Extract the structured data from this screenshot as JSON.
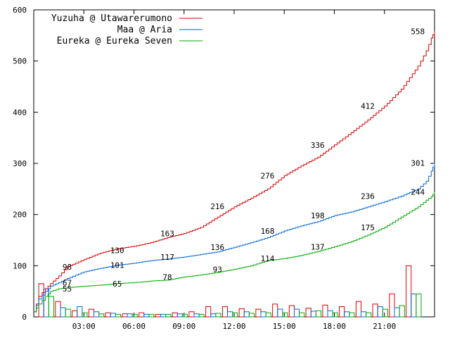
{
  "chart_data": {
    "type": "line",
    "x_axis": {
      "min_hour": 0.0,
      "max_hour": 24.0,
      "tick_hours": [
        3,
        6,
        9,
        12,
        15,
        18,
        21
      ],
      "tick_labels": [
        "03:00",
        "06:00",
        "09:00",
        "12:00",
        "15:00",
        "18:00",
        "21:00"
      ]
    },
    "y_axis": {
      "min": 0,
      "max": 600,
      "ticks": [
        0,
        100,
        200,
        300,
        400,
        500,
        600
      ],
      "tick_labels": [
        "0",
        "100",
        "200",
        "300",
        "400",
        "500",
        "600"
      ]
    },
    "series": [
      {
        "name": "Yuzuha @ Utawarerumono",
        "color": "#dd0000",
        "cumulative": [
          [
            0,
            10
          ],
          [
            0.3,
            40
          ],
          [
            0.7,
            55
          ],
          [
            1,
            65
          ],
          [
            1.5,
            80
          ],
          [
            2,
            98
          ],
          [
            3,
            112
          ],
          [
            4,
            125
          ],
          [
            5,
            133
          ],
          [
            6,
            138
          ],
          [
            7,
            145
          ],
          [
            8,
            155
          ],
          [
            9,
            163
          ],
          [
            10,
            175
          ],
          [
            11,
            195
          ],
          [
            12,
            215
          ],
          [
            13,
            232
          ],
          [
            14,
            250
          ],
          [
            15,
            276
          ],
          [
            16,
            295
          ],
          [
            17,
            312
          ],
          [
            18,
            336
          ],
          [
            19,
            360
          ],
          [
            20,
            385
          ],
          [
            21,
            412
          ],
          [
            22,
            445
          ],
          [
            23,
            490
          ],
          [
            23.5,
            520
          ],
          [
            23.8,
            545
          ],
          [
            24,
            558
          ]
        ],
        "labels": [
          [
            2,
            98,
            "98"
          ],
          [
            5,
            130,
            "130"
          ],
          [
            8,
            163,
            "163"
          ],
          [
            11,
            216,
            "216"
          ],
          [
            14,
            276,
            "276"
          ],
          [
            17,
            336,
            "336"
          ],
          [
            20,
            412,
            "412"
          ],
          [
            23,
            558,
            "558"
          ]
        ],
        "bars": [
          [
            0.3,
            65
          ],
          [
            1.3,
            30
          ],
          [
            2.3,
            12
          ],
          [
            3.3,
            15
          ],
          [
            4.3,
            8
          ],
          [
            5.3,
            6
          ],
          [
            6.3,
            8
          ],
          [
            7.3,
            5
          ],
          [
            8.3,
            8
          ],
          [
            9.3,
            10
          ],
          [
            10.3,
            20
          ],
          [
            11.3,
            20
          ],
          [
            12.3,
            16
          ],
          [
            13.3,
            15
          ],
          [
            14.3,
            25
          ],
          [
            15.3,
            22
          ],
          [
            16.3,
            17
          ],
          [
            17.3,
            23
          ],
          [
            18.3,
            20
          ],
          [
            19.3,
            30
          ],
          [
            20.3,
            25
          ],
          [
            21.3,
            45
          ],
          [
            22.3,
            100
          ]
        ]
      },
      {
        "name": "Maa @ Aria",
        "color": "#0066dd",
        "cumulative": [
          [
            0,
            10
          ],
          [
            0.3,
            35
          ],
          [
            0.7,
            50
          ],
          [
            1,
            60
          ],
          [
            1.5,
            67
          ],
          [
            2,
            75
          ],
          [
            3,
            88
          ],
          [
            4,
            95
          ],
          [
            5,
            101
          ],
          [
            6,
            105
          ],
          [
            7,
            110
          ],
          [
            8,
            113
          ],
          [
            9,
            117
          ],
          [
            10,
            122
          ],
          [
            11,
            127
          ],
          [
            12,
            136
          ],
          [
            13,
            145
          ],
          [
            14,
            155
          ],
          [
            15,
            168
          ],
          [
            16,
            178
          ],
          [
            17,
            186
          ],
          [
            18,
            198
          ],
          [
            19,
            205
          ],
          [
            20,
            215
          ],
          [
            21,
            225
          ],
          [
            22,
            236
          ],
          [
            23,
            250
          ],
          [
            23.5,
            265
          ],
          [
            23.8,
            285
          ],
          [
            24,
            301
          ]
        ],
        "labels": [
          [
            2,
            67,
            "67"
          ],
          [
            5,
            101,
            "101"
          ],
          [
            8,
            117,
            "117"
          ],
          [
            11,
            136,
            "136"
          ],
          [
            14,
            168,
            "168"
          ],
          [
            17,
            198,
            "198"
          ],
          [
            20,
            236,
            "236"
          ],
          [
            23,
            301,
            "301"
          ]
        ],
        "bars": [
          [
            0.6,
            55
          ],
          [
            1.6,
            18
          ],
          [
            2.6,
            20
          ],
          [
            3.6,
            10
          ],
          [
            4.6,
            7
          ],
          [
            5.6,
            6
          ],
          [
            6.6,
            5
          ],
          [
            7.6,
            5
          ],
          [
            8.6,
            6
          ],
          [
            9.6,
            6
          ],
          [
            10.6,
            6
          ],
          [
            11.6,
            10
          ],
          [
            12.6,
            10
          ],
          [
            13.6,
            10
          ],
          [
            14.6,
            15
          ],
          [
            15.6,
            15
          ],
          [
            16.6,
            11
          ],
          [
            17.6,
            12
          ],
          [
            18.6,
            10
          ],
          [
            19.6,
            10
          ],
          [
            20.6,
            20
          ],
          [
            21.6,
            18
          ],
          [
            22.6,
            45
          ]
        ]
      },
      {
        "name": "Eureka @ Eureka Seven",
        "color": "#00aa00",
        "cumulative": [
          [
            0,
            10
          ],
          [
            0.3,
            25
          ],
          [
            0.7,
            40
          ],
          [
            1,
            50
          ],
          [
            1.5,
            55
          ],
          [
            2,
            57
          ],
          [
            3,
            60
          ],
          [
            4,
            62
          ],
          [
            5,
            65
          ],
          [
            6,
            67
          ],
          [
            7,
            70
          ],
          [
            8,
            72
          ],
          [
            9,
            78
          ],
          [
            10,
            82
          ],
          [
            11,
            87
          ],
          [
            12,
            93
          ],
          [
            13,
            100
          ],
          [
            14,
            110
          ],
          [
            15,
            114
          ],
          [
            16,
            120
          ],
          [
            17,
            128
          ],
          [
            18,
            137
          ],
          [
            19,
            147
          ],
          [
            20,
            160
          ],
          [
            21,
            175
          ],
          [
            22,
            195
          ],
          [
            23,
            215
          ],
          [
            23.5,
            228
          ],
          [
            23.8,
            235
          ],
          [
            24,
            244
          ]
        ],
        "labels": [
          [
            2,
            55,
            "55"
          ],
          [
            5,
            65,
            "65"
          ],
          [
            8,
            78,
            "78"
          ],
          [
            11,
            93,
            "93"
          ],
          [
            14,
            114,
            "114"
          ],
          [
            17,
            137,
            "137"
          ],
          [
            20,
            175,
            "175"
          ],
          [
            23,
            244,
            "244"
          ]
        ],
        "bars": [
          [
            0.9,
            40
          ],
          [
            1.9,
            15
          ],
          [
            2.9,
            8
          ],
          [
            3.9,
            6
          ],
          [
            4.9,
            5
          ],
          [
            5.9,
            5
          ],
          [
            6.9,
            5
          ],
          [
            7.9,
            5
          ],
          [
            8.9,
            5
          ],
          [
            9.9,
            5
          ],
          [
            10.9,
            7
          ],
          [
            11.9,
            8
          ],
          [
            12.9,
            7
          ],
          [
            13.9,
            8
          ],
          [
            14.9,
            8
          ],
          [
            15.9,
            8
          ],
          [
            16.9,
            12
          ],
          [
            17.9,
            8
          ],
          [
            18.9,
            8
          ],
          [
            19.9,
            8
          ],
          [
            20.9,
            15
          ],
          [
            21.9,
            22
          ],
          [
            22.9,
            45
          ]
        ]
      }
    ],
    "legend_position": "top-left",
    "grid": false
  }
}
